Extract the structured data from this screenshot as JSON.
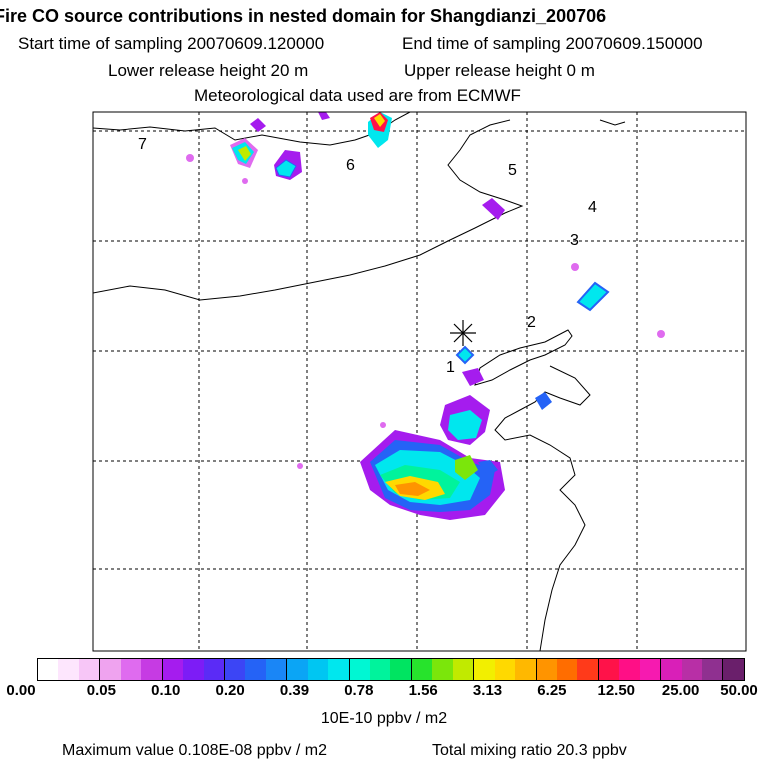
{
  "header": {
    "title": "Fire CO source contributions in nested domain for Shangdianzi_200706",
    "start_time": "Start time of sampling 20070609.120000",
    "end_time": "End time of sampling 20070609.150000",
    "lower_height": "Lower release height   20 m",
    "upper_height": "Upper release height    0 m",
    "met_data": "Meteorological data used are from ECMWF"
  },
  "map": {
    "region_labels": [
      "1",
      "2",
      "3",
      "4",
      "5",
      "6",
      "7"
    ],
    "station_marker": "asterisk-icon"
  },
  "colorbar": {
    "ticks": [
      "0.00",
      "0.05",
      "0.10",
      "0.20",
      "0.39",
      "0.78",
      "1.56",
      "3.13",
      "6.25",
      "12.50",
      "25.00",
      "50.00"
    ],
    "unit": "10E-10 ppbv / m2",
    "colors": [
      "#ffffff",
      "#fde6fd",
      "#f7c6f7",
      "#efa3ef",
      "#df6bef",
      "#c63be3",
      "#a51cee",
      "#7d1cf6",
      "#5b2bf6",
      "#3c45f5",
      "#2563f6",
      "#1a86f6",
      "#0ba5f5",
      "#00c6f2",
      "#00e7ee",
      "#00f7d3",
      "#00f39c",
      "#00e461",
      "#27e32c",
      "#7be60b",
      "#c1ea00",
      "#f2ef00",
      "#ffd900",
      "#ffb800",
      "#ff9400",
      "#ff6d00",
      "#ff3a1a",
      "#ff1249",
      "#ff0f86",
      "#f61ab0",
      "#d91fb8",
      "#b82fa6",
      "#8f3090",
      "#6a1f6b"
    ]
  },
  "footer": {
    "max_value": "Maximum value  0.108E-08 ppbv / m2",
    "total": "Total mixing ratio      20.3 ppbv"
  }
}
